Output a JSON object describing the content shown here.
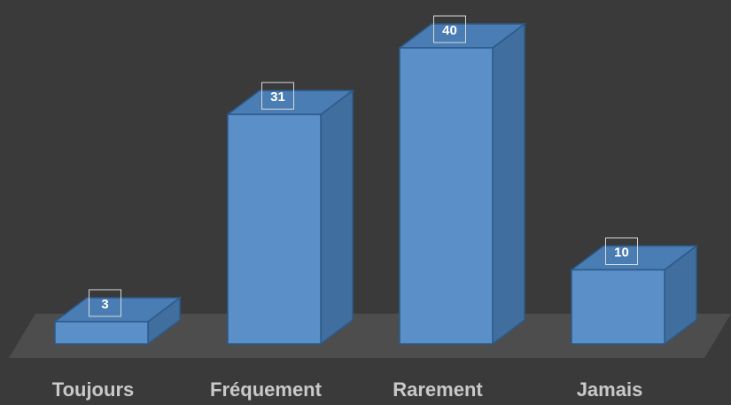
{
  "chart_data": {
    "type": "bar",
    "categories": [
      "Toujours",
      "Fréquement",
      "Rarement",
      "Jamais"
    ],
    "values": [
      3,
      31,
      40,
      10
    ],
    "title": "",
    "xlabel": "",
    "ylabel": "",
    "ylim": [
      0,
      40
    ],
    "grid": false,
    "legend": "none",
    "data_labels": [
      "3",
      "31",
      "40",
      "10"
    ]
  },
  "colors": {
    "background": "#3a3a3a",
    "floor": "#4d4d4d",
    "bar_front": "#5a8fc8",
    "bar_side": "#3f6e9f",
    "bar_top": "#4a7db3",
    "bar_edge": "#2c5a8a",
    "label_box_border": "#d8d8d8",
    "category_text": "#c9c9c9"
  }
}
